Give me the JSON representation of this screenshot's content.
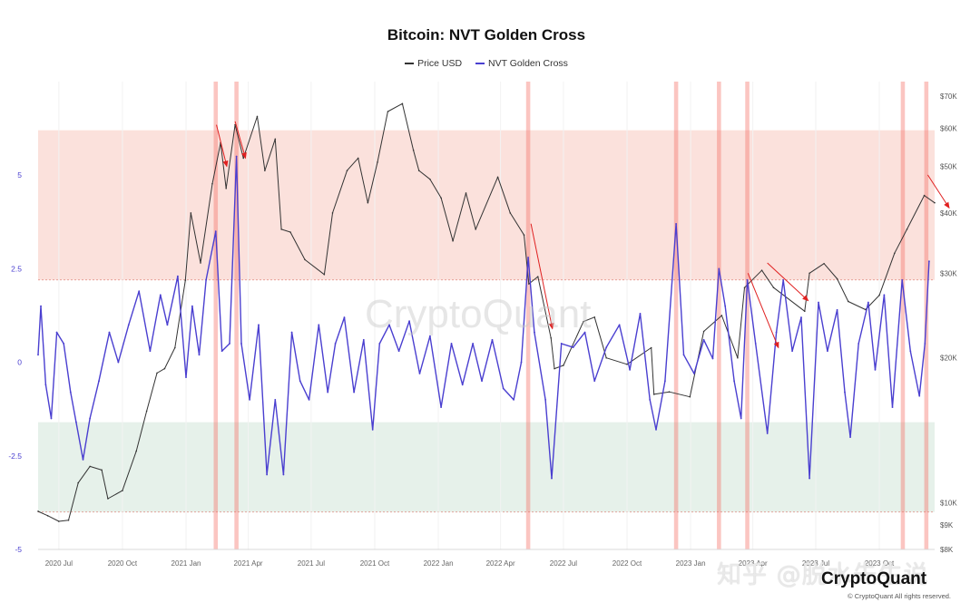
{
  "chart_data": {
    "type": "line",
    "title": "Bitcoin: NVT Golden Cross",
    "legend_position": "top-center",
    "legend": [
      {
        "label": "Price USD",
        "color": "#333333"
      },
      {
        "label": "NVT Golden Cross",
        "color": "#4a3fd0"
      }
    ],
    "x_ticks": [
      "2020 Jul",
      "2020 Oct",
      "2021 Jan",
      "2021 Apr",
      "2021 Jul",
      "2021 Oct",
      "2022 Jan",
      "2022 Apr",
      "2022 Jul",
      "2022 Oct",
      "2023 Jan",
      "2023 Apr",
      "2023 Jul",
      "2023 Oct"
    ],
    "x_tick_dates": [
      "2020-07-01",
      "2020-10-01",
      "2021-01-01",
      "2021-04-01",
      "2021-07-01",
      "2021-10-01",
      "2022-01-01",
      "2022-04-01",
      "2022-07-01",
      "2022-10-01",
      "2023-01-01",
      "2023-04-01",
      "2023-07-01",
      "2023-10-01"
    ],
    "x_range": [
      "2020-06-01",
      "2023-12-20"
    ],
    "left_axis": {
      "ticks": [
        "5",
        "2.5",
        "0",
        "-2.5",
        "-5"
      ],
      "tick_values": [
        5,
        2.5,
        0,
        -2.5,
        -5
      ],
      "range": [
        -5,
        7.5
      ],
      "color": "#4a3fd0"
    },
    "right_axis": {
      "ticks": [
        "$70K",
        "$60K",
        "$50K",
        "$40K",
        "$30K",
        "$20K",
        "$10K",
        "$9K",
        "$8K"
      ],
      "tick_values": [
        70000,
        60000,
        50000,
        40000,
        30000,
        20000,
        10000,
        9000,
        8000
      ],
      "scale": "log",
      "range": [
        8000,
        75000
      ]
    },
    "zones": [
      {
        "name": "overbought",
        "from": 2.2,
        "to": 6.2,
        "color": "#fbe1dc"
      },
      {
        "name": "oversold",
        "from": -4.0,
        "to": -1.6,
        "color": "#e6f1ea"
      }
    ],
    "highlight_bands": [
      {
        "start": "2021-02-10",
        "end": "2021-02-16"
      },
      {
        "start": "2021-03-12",
        "end": "2021-03-18"
      },
      {
        "start": "2022-05-08",
        "end": "2022-05-14"
      },
      {
        "start": "2022-12-08",
        "end": "2022-12-14"
      },
      {
        "start": "2023-02-08",
        "end": "2023-02-14"
      },
      {
        "start": "2023-03-21",
        "end": "2023-03-27"
      },
      {
        "start": "2023-11-01",
        "end": "2023-11-07"
      },
      {
        "start": "2023-12-05",
        "end": "2023-12-11"
      }
    ],
    "annotation_arrows": [
      {
        "from": [
          "2021-02-14",
          61000
        ],
        "to": [
          "2021-03-01",
          50000
        ]
      },
      {
        "from": [
          "2021-03-13",
          62000
        ],
        "to": [
          "2021-03-28",
          52000
        ]
      },
      {
        "from": [
          "2022-05-15",
          38000
        ],
        "to": [
          "2022-06-15",
          23000
        ]
      },
      {
        "from": [
          "2023-03-25",
          30000
        ],
        "to": [
          "2023-05-08",
          21000
        ]
      },
      {
        "from": [
          "2023-04-22",
          31500
        ],
        "to": [
          "2023-06-20",
          26300
        ]
      },
      {
        "from": [
          "2023-12-10",
          48000
        ],
        "to": [
          "2024-01-10",
          41000
        ]
      }
    ],
    "series": [
      {
        "name": "Price USD",
        "axis": "right",
        "points": [
          [
            "2020-06-01",
            9600
          ],
          [
            "2020-06-15",
            9400
          ],
          [
            "2020-07-01",
            9150
          ],
          [
            "2020-07-15",
            9200
          ],
          [
            "2020-07-29",
            11000
          ],
          [
            "2020-08-15",
            11900
          ],
          [
            "2020-09-01",
            11700
          ],
          [
            "2020-09-10",
            10200
          ],
          [
            "2020-10-01",
            10600
          ],
          [
            "2020-10-21",
            12800
          ],
          [
            "2020-11-05",
            15500
          ],
          [
            "2020-11-20",
            18600
          ],
          [
            "2020-12-01",
            19000
          ],
          [
            "2020-12-16",
            21000
          ],
          [
            "2020-12-31",
            29000
          ],
          [
            "2021-01-08",
            40000
          ],
          [
            "2021-01-22",
            31500
          ],
          [
            "2021-02-08",
            46000
          ],
          [
            "2021-02-20",
            56000
          ],
          [
            "2021-02-28",
            45000
          ],
          [
            "2021-03-13",
            61000
          ],
          [
            "2021-03-25",
            52000
          ],
          [
            "2021-04-14",
            63500
          ],
          [
            "2021-04-25",
            49000
          ],
          [
            "2021-05-10",
            57000
          ],
          [
            "2021-05-19",
            37000
          ],
          [
            "2021-06-01",
            36500
          ],
          [
            "2021-06-22",
            32000
          ],
          [
            "2021-07-20",
            29800
          ],
          [
            "2021-08-01",
            40000
          ],
          [
            "2021-08-22",
            49000
          ],
          [
            "2021-09-07",
            52000
          ],
          [
            "2021-09-21",
            42000
          ],
          [
            "2021-10-05",
            51000
          ],
          [
            "2021-10-20",
            65000
          ],
          [
            "2021-11-10",
            67500
          ],
          [
            "2021-11-26",
            54000
          ],
          [
            "2021-12-04",
            49000
          ],
          [
            "2021-12-20",
            47000
          ],
          [
            "2022-01-05",
            43000
          ],
          [
            "2022-01-22",
            35000
          ],
          [
            "2022-02-10",
            44000
          ],
          [
            "2022-02-24",
            37000
          ],
          [
            "2022-03-28",
            47500
          ],
          [
            "2022-04-15",
            40000
          ],
          [
            "2022-05-05",
            36000
          ],
          [
            "2022-05-12",
            28500
          ],
          [
            "2022-05-25",
            29500
          ],
          [
            "2022-06-13",
            22000
          ],
          [
            "2022-06-18",
            19000
          ],
          [
            "2022-07-01",
            19300
          ],
          [
            "2022-07-30",
            23800
          ],
          [
            "2022-08-15",
            24300
          ],
          [
            "2022-09-01",
            20000
          ],
          [
            "2022-10-01",
            19400
          ],
          [
            "2022-11-05",
            21000
          ],
          [
            "2022-11-09",
            16800
          ],
          [
            "2022-12-01",
            17000
          ],
          [
            "2022-12-31",
            16600
          ],
          [
            "2023-01-20",
            22700
          ],
          [
            "2023-02-15",
            24500
          ],
          [
            "2023-03-10",
            20000
          ],
          [
            "2023-03-20",
            28000
          ],
          [
            "2023-04-14",
            30400
          ],
          [
            "2023-05-01",
            28000
          ],
          [
            "2023-06-15",
            25000
          ],
          [
            "2023-06-22",
            30000
          ],
          [
            "2023-07-13",
            31400
          ],
          [
            "2023-08-01",
            29200
          ],
          [
            "2023-08-17",
            26200
          ],
          [
            "2023-09-11",
            25200
          ],
          [
            "2023-10-01",
            27000
          ],
          [
            "2023-10-23",
            33000
          ],
          [
            "2023-11-10",
            37000
          ],
          [
            "2023-12-05",
            43500
          ],
          [
            "2023-12-20",
            42000
          ]
        ]
      },
      {
        "name": "NVT Golden Cross",
        "axis": "left",
        "points": [
          [
            "2020-06-01",
            0.2
          ],
          [
            "2020-06-05",
            1.5
          ],
          [
            "2020-06-12",
            -0.6
          ],
          [
            "2020-06-20",
            -1.5
          ],
          [
            "2020-06-28",
            0.8
          ],
          [
            "2020-07-08",
            0.5
          ],
          [
            "2020-07-18",
            -0.8
          ],
          [
            "2020-07-26",
            -1.6
          ],
          [
            "2020-08-05",
            -2.6
          ],
          [
            "2020-08-15",
            -1.5
          ],
          [
            "2020-08-28",
            -0.5
          ],
          [
            "2020-09-12",
            0.8
          ],
          [
            "2020-09-25",
            0.0
          ],
          [
            "2020-10-10",
            1.0
          ],
          [
            "2020-10-25",
            1.9
          ],
          [
            "2020-11-10",
            0.3
          ],
          [
            "2020-11-25",
            1.8
          ],
          [
            "2020-12-05",
            1.0
          ],
          [
            "2020-12-20",
            2.3
          ],
          [
            "2021-01-01",
            -0.4
          ],
          [
            "2021-01-10",
            1.5
          ],
          [
            "2021-01-20",
            0.2
          ],
          [
            "2021-01-30",
            2.2
          ],
          [
            "2021-02-13",
            3.5
          ],
          [
            "2021-02-22",
            0.3
          ],
          [
            "2021-03-05",
            0.5
          ],
          [
            "2021-03-15",
            5.5
          ],
          [
            "2021-03-22",
            0.5
          ],
          [
            "2021-04-03",
            -1.0
          ],
          [
            "2021-04-16",
            1.0
          ],
          [
            "2021-04-28",
            -3.0
          ],
          [
            "2021-05-10",
            -1.0
          ],
          [
            "2021-05-22",
            -3.0
          ],
          [
            "2021-06-03",
            0.8
          ],
          [
            "2021-06-15",
            -0.5
          ],
          [
            "2021-06-28",
            -1.0
          ],
          [
            "2021-07-12",
            1.0
          ],
          [
            "2021-07-25",
            -0.8
          ],
          [
            "2021-08-05",
            0.5
          ],
          [
            "2021-08-18",
            1.2
          ],
          [
            "2021-09-01",
            -0.8
          ],
          [
            "2021-09-15",
            0.6
          ],
          [
            "2021-09-28",
            -1.8
          ],
          [
            "2021-10-08",
            0.5
          ],
          [
            "2021-10-22",
            1.0
          ],
          [
            "2021-11-05",
            0.3
          ],
          [
            "2021-11-20",
            1.1
          ],
          [
            "2021-12-05",
            -0.3
          ],
          [
            "2021-12-20",
            0.7
          ],
          [
            "2022-01-05",
            -1.2
          ],
          [
            "2022-01-20",
            0.5
          ],
          [
            "2022-02-05",
            -0.6
          ],
          [
            "2022-02-20",
            0.5
          ],
          [
            "2022-03-05",
            -0.5
          ],
          [
            "2022-03-20",
            0.6
          ],
          [
            "2022-04-05",
            -0.7
          ],
          [
            "2022-04-20",
            -1.0
          ],
          [
            "2022-05-01",
            0.0
          ],
          [
            "2022-05-11",
            2.8
          ],
          [
            "2022-05-20",
            0.8
          ],
          [
            "2022-06-05",
            -1.0
          ],
          [
            "2022-06-14",
            -3.1
          ],
          [
            "2022-06-28",
            0.5
          ],
          [
            "2022-07-15",
            0.4
          ],
          [
            "2022-08-01",
            0.8
          ],
          [
            "2022-08-15",
            -0.5
          ],
          [
            "2022-09-01",
            0.4
          ],
          [
            "2022-09-20",
            1.0
          ],
          [
            "2022-10-05",
            -0.2
          ],
          [
            "2022-10-20",
            1.3
          ],
          [
            "2022-11-03",
            -1.0
          ],
          [
            "2022-11-12",
            -1.8
          ],
          [
            "2022-11-25",
            -0.5
          ],
          [
            "2022-12-11",
            3.7
          ],
          [
            "2022-12-22",
            0.2
          ],
          [
            "2023-01-06",
            -0.3
          ],
          [
            "2023-01-20",
            0.6
          ],
          [
            "2023-02-02",
            0.1
          ],
          [
            "2023-02-11",
            2.5
          ],
          [
            "2023-02-20",
            1.5
          ],
          [
            "2023-03-05",
            -0.5
          ],
          [
            "2023-03-15",
            -1.5
          ],
          [
            "2023-03-24",
            2.2
          ],
          [
            "2023-04-05",
            0.5
          ],
          [
            "2023-04-22",
            -1.9
          ],
          [
            "2023-05-05",
            0.8
          ],
          [
            "2023-05-15",
            2.2
          ],
          [
            "2023-05-28",
            0.3
          ],
          [
            "2023-06-10",
            1.2
          ],
          [
            "2023-06-22",
            -3.1
          ],
          [
            "2023-07-05",
            1.6
          ],
          [
            "2023-07-18",
            0.3
          ],
          [
            "2023-08-01",
            1.4
          ],
          [
            "2023-08-12",
            -0.8
          ],
          [
            "2023-08-20",
            -2.0
          ],
          [
            "2023-09-01",
            0.5
          ],
          [
            "2023-09-15",
            1.6
          ],
          [
            "2023-09-25",
            -0.2
          ],
          [
            "2023-10-08",
            1.8
          ],
          [
            "2023-10-20",
            -1.2
          ],
          [
            "2023-11-03",
            2.2
          ],
          [
            "2023-11-15",
            0.3
          ],
          [
            "2023-11-28",
            -0.9
          ],
          [
            "2023-12-06",
            0.5
          ],
          [
            "2023-12-12",
            2.7
          ]
        ]
      }
    ]
  },
  "watermark": "CryptoQuant",
  "bottom_overlay": "知乎 @脱水先生说",
  "logo_text": "CryptoQuant",
  "copyright": "© CryptoQuant All rights reserved."
}
